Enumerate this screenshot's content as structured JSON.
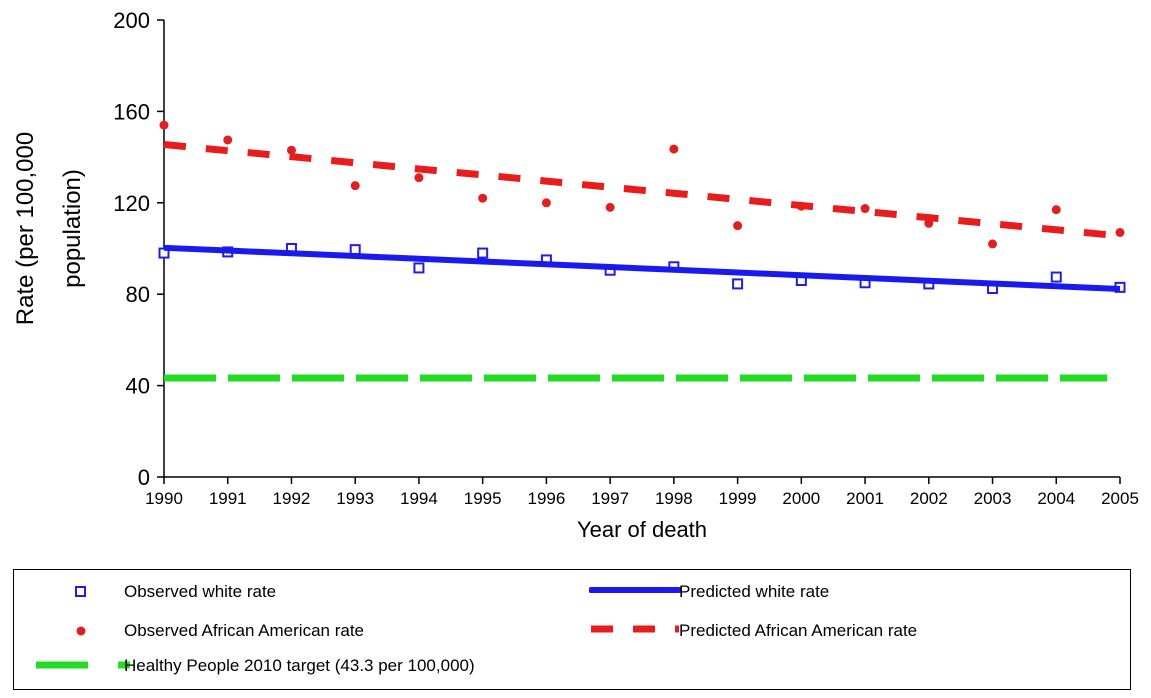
{
  "chart_data": {
    "type": "line",
    "title": "",
    "xlabel": "Year of death",
    "ylabel": "Rate (per 100,000 population)",
    "ylabel_lines": [
      "Rate (per 100,000",
      "population)"
    ],
    "xlim": [
      1990,
      2005
    ],
    "ylim": [
      0,
      200
    ],
    "yticks": [
      0,
      40,
      80,
      120,
      160,
      200
    ],
    "x": [
      1990,
      1991,
      1992,
      1993,
      1994,
      1995,
      1996,
      1997,
      1998,
      1999,
      2000,
      2001,
      2002,
      2003,
      2004,
      2005
    ],
    "grid": false,
    "legend_position": "bottom",
    "series": [
      {
        "name": "Observed white rate",
        "kind": "scatter",
        "marker": "hollow-square",
        "color": "#1f1fe0",
        "values": [
          98,
          98.5,
          100,
          99.5,
          91.5,
          98,
          95,
          90.5,
          92,
          84.5,
          86,
          85,
          84.5,
          82.5,
          87.5,
          83
        ]
      },
      {
        "name": "Predicted white rate",
        "kind": "line",
        "style": "solid",
        "color": "#1a1aee",
        "values": [
          100.3,
          99.1,
          97.9,
          96.7,
          95.5,
          94.3,
          93.1,
          91.9,
          90.7,
          89.5,
          88.3,
          87.1,
          85.9,
          84.7,
          83.5,
          82.3
        ]
      },
      {
        "name": "Observed African American rate",
        "kind": "scatter",
        "marker": "filled-circle",
        "color": "#e02020",
        "values": [
          154,
          147.5,
          143,
          127.5,
          131,
          122,
          120,
          118,
          143.5,
          110,
          118.5,
          117.5,
          111,
          102,
          117,
          107
        ]
      },
      {
        "name": "Predicted African American rate",
        "kind": "line",
        "style": "dashed",
        "color": "#e81c1c",
        "values": [
          145.5,
          142.8,
          140.2,
          137.5,
          134.8,
          132.2,
          129.5,
          126.8,
          124.2,
          121.5,
          118.8,
          116.2,
          113.5,
          110.8,
          108.2,
          105.5
        ]
      },
      {
        "name": "Healthy People 2010 target (43.3 per 100,000)",
        "kind": "line",
        "style": "dashed",
        "color": "#22dd22",
        "constant": 43.3,
        "x_range": [
          1990,
          2004.8
        ]
      }
    ]
  }
}
